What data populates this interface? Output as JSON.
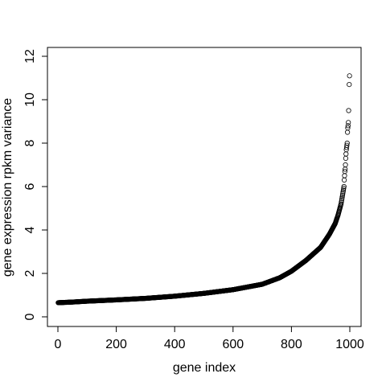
{
  "chart_data": {
    "type": "scatter",
    "title": "",
    "xlabel": "gene index",
    "ylabel": "gene expression rpkm variance",
    "xlim": [
      0,
      1000
    ],
    "ylim": [
      0,
      12
    ],
    "x_ticks": [
      0,
      200,
      400,
      600,
      800,
      1000
    ],
    "y_ticks": [
      0,
      2,
      4,
      6,
      8,
      10,
      12
    ],
    "x_tick_labels": [
      "0",
      "200",
      "400",
      "600",
      "800",
      "1000"
    ],
    "y_tick_labels": [
      "0",
      "2",
      "4",
      "6",
      "8",
      "10",
      "12"
    ],
    "grid": false,
    "legend": "none",
    "marker": "open-circle",
    "n_points": 1000,
    "curve_anchors": [
      [
        1,
        0.65
      ],
      [
        50,
        0.68
      ],
      [
        100,
        0.72
      ],
      [
        200,
        0.78
      ],
      [
        300,
        0.85
      ],
      [
        400,
        0.95
      ],
      [
        500,
        1.08
      ],
      [
        600,
        1.25
      ],
      [
        700,
        1.5
      ],
      [
        760,
        1.8
      ],
      [
        800,
        2.1
      ],
      [
        850,
        2.6
      ],
      [
        900,
        3.2
      ],
      [
        930,
        3.8
      ],
      [
        950,
        4.3
      ],
      [
        960,
        4.7
      ],
      [
        970,
        5.2
      ],
      [
        975,
        5.6
      ],
      [
        980,
        6.0
      ]
    ],
    "tail_points": [
      [
        981,
        6.3
      ],
      [
        982,
        6.5
      ],
      [
        983,
        6.7
      ],
      [
        984,
        6.8
      ],
      [
        985,
        7.0
      ],
      [
        986,
        7.3
      ],
      [
        987,
        7.5
      ],
      [
        988,
        7.7
      ],
      [
        989,
        7.8
      ],
      [
        990,
        7.9
      ],
      [
        991,
        8.0
      ],
      [
        992,
        8.5
      ],
      [
        993,
        8.7
      ],
      [
        994,
        8.8
      ],
      [
        995,
        8.95
      ],
      [
        996,
        9.5
      ],
      [
        998,
        10.7
      ],
      [
        999,
        11.1
      ]
    ]
  }
}
